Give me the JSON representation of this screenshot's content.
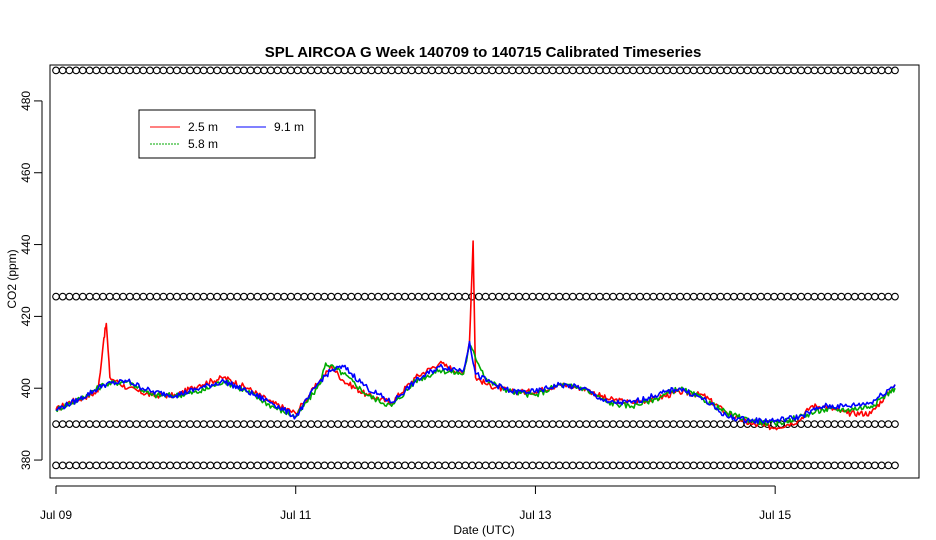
{
  "chart_data": {
    "type": "line",
    "title": "SPL AIRCOA G  Week 140709 to 140715  Calibrated Timeseries",
    "xlabel": "Date (UTC)",
    "ylabel": "CO2 (ppm)",
    "x_unit": "day of July 2014 (UTC)",
    "xlim": [
      8.95,
      16.2
    ],
    "ylim": [
      375,
      490
    ],
    "x_ticks": [
      {
        "value": 9,
        "label": "Jul 09"
      },
      {
        "value": 11,
        "label": "Jul 11"
      },
      {
        "value": 13,
        "label": "Jul 13"
      },
      {
        "value": 15,
        "label": "Jul 15"
      }
    ],
    "y_ticks": [
      {
        "value": 380,
        "label": "380"
      },
      {
        "value": 400,
        "label": "400"
      },
      {
        "value": 420,
        "label": "420"
      },
      {
        "value": 440,
        "label": "440"
      },
      {
        "value": 460,
        "label": "460"
      },
      {
        "value": 480,
        "label": "480"
      }
    ],
    "grid": false,
    "legend_position": "top-left",
    "series": [
      {
        "name": "2.5 m",
        "color": "#ff0000",
        "x": [
          9.0,
          9.1,
          9.2,
          9.35,
          9.4,
          9.42,
          9.45,
          9.5,
          9.6,
          9.8,
          10.0,
          10.2,
          10.4,
          10.6,
          10.8,
          11.0,
          11.2,
          11.3,
          11.4,
          11.6,
          11.8,
          12.0,
          12.2,
          12.4,
          12.45,
          12.48,
          12.5,
          12.6,
          12.8,
          13.0,
          13.2,
          13.4,
          13.6,
          13.8,
          14.0,
          14.2,
          14.4,
          14.6,
          14.8,
          15.0,
          15.2,
          15.3,
          15.4,
          15.6,
          15.8,
          16.0
        ],
        "y": [
          394,
          396,
          397,
          399,
          414,
          418,
          403,
          402,
          400,
          398,
          398,
          401,
          403,
          400,
          396,
          393,
          402,
          406,
          402,
          398,
          396,
          403,
          407,
          404,
          413,
          441,
          403,
          401,
          399,
          399,
          401,
          400,
          397,
          396,
          397,
          399,
          398,
          393,
          390,
          389,
          391,
          395,
          395,
          393,
          393,
          401
        ]
      },
      {
        "name": "5.8 m",
        "color": "#00aa00",
        "x": [
          9.0,
          9.2,
          9.4,
          9.6,
          9.8,
          10.0,
          10.2,
          10.4,
          10.6,
          10.8,
          11.0,
          11.2,
          11.25,
          11.4,
          11.6,
          11.8,
          12.0,
          12.2,
          12.4,
          12.45,
          12.6,
          12.8,
          13.0,
          13.2,
          13.4,
          13.6,
          13.8,
          14.0,
          14.2,
          14.4,
          14.6,
          14.8,
          15.0,
          15.2,
          15.4,
          15.6,
          15.8,
          16.0
        ],
        "y": [
          394,
          397,
          401,
          402,
          398,
          398,
          399,
          402,
          399,
          395,
          392,
          401,
          407,
          404,
          398,
          395,
          402,
          405,
          404,
          412,
          402,
          399,
          398,
          401,
          400,
          396,
          395,
          397,
          400,
          397,
          393,
          391,
          390,
          392,
          394,
          394,
          395,
          400
        ]
      },
      {
        "name": "9.1 m",
        "color": "#0000ff",
        "x": [
          9.0,
          9.2,
          9.4,
          9.6,
          9.8,
          10.0,
          10.2,
          10.4,
          10.6,
          10.8,
          11.0,
          11.2,
          11.3,
          11.4,
          11.6,
          11.8,
          12.0,
          12.2,
          12.4,
          12.45,
          12.5,
          12.6,
          12.8,
          13.0,
          13.2,
          13.4,
          13.6,
          13.8,
          14.0,
          14.2,
          14.4,
          14.6,
          14.8,
          15.0,
          15.2,
          15.4,
          15.6,
          15.8,
          16.0
        ],
        "y": [
          394,
          397,
          401,
          402,
          399,
          398,
          400,
          402,
          399,
          396,
          392,
          402,
          405,
          406,
          400,
          396,
          402,
          406,
          405,
          413,
          404,
          402,
          399,
          399,
          401,
          400,
          396,
          396,
          398,
          400,
          397,
          392,
          391,
          391,
          392,
          395,
          395,
          396,
          401
        ]
      }
    ],
    "flag_markers": {
      "shape": "open circle",
      "color": "#000000",
      "y_levels": [
        488.5,
        425.5,
        390,
        378.5
      ]
    }
  }
}
